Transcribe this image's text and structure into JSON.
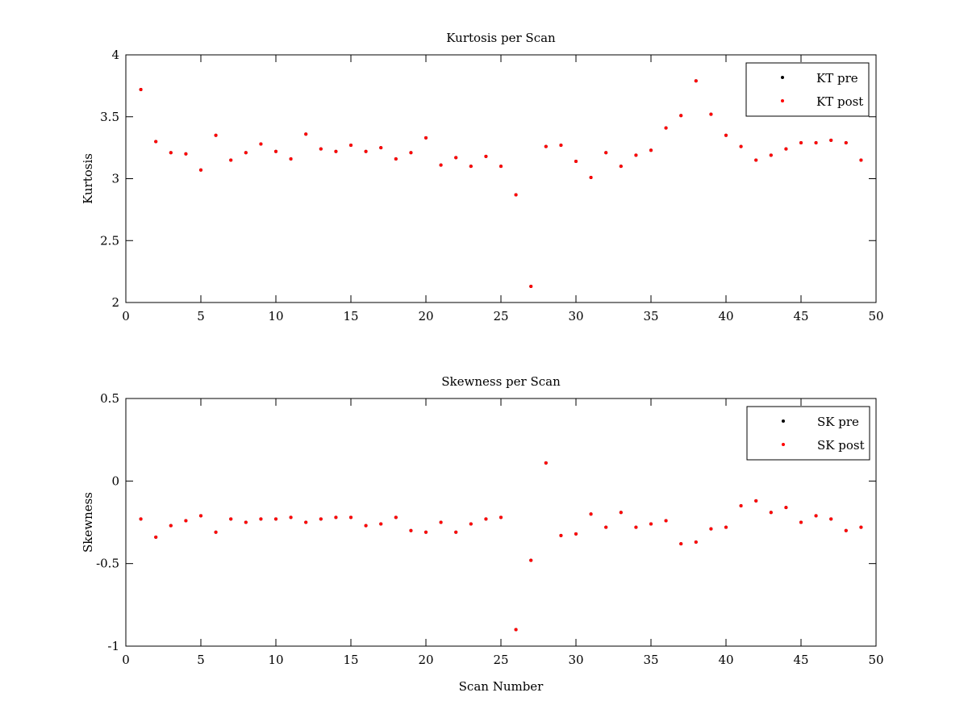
{
  "figure_background": "#ffffff",
  "chart_data": [
    {
      "type": "scatter",
      "title": "Kurtosis per Scan",
      "xlabel": "",
      "ylabel": "Kurtosis",
      "xlim": [
        0,
        50
      ],
      "ylim": [
        2,
        4
      ],
      "xticks": [
        "0",
        "5",
        "10",
        "15",
        "20",
        "25",
        "30",
        "35",
        "40",
        "45",
        "50"
      ],
      "yticks": [
        "2",
        "2.5",
        "3",
        "3.5",
        "4"
      ],
      "grid": false,
      "legend_position": "top-right",
      "x": [
        1,
        2,
        3,
        4,
        5,
        6,
        7,
        8,
        9,
        10,
        11,
        12,
        13,
        14,
        15,
        16,
        17,
        18,
        19,
        20,
        21,
        22,
        23,
        24,
        25,
        26,
        27,
        28,
        29,
        30,
        31,
        32,
        33,
        34,
        35,
        36,
        37,
        38,
        39,
        40,
        41,
        42,
        43,
        44,
        45,
        46,
        47,
        48,
        49
      ],
      "series": [
        {
          "name": "KT pre",
          "color": "#000000",
          "marker": "dot",
          "values": [
            3.72,
            3.3,
            3.21,
            3.2,
            3.07,
            3.35,
            3.15,
            3.21,
            3.28,
            3.22,
            3.16,
            3.36,
            3.24,
            3.22,
            3.27,
            3.22,
            3.25,
            3.16,
            3.21,
            3.33,
            3.11,
            3.17,
            3.1,
            3.18,
            3.1,
            2.87,
            2.13,
            3.26,
            3.27,
            3.14,
            3.01,
            3.21,
            3.1,
            3.19,
            3.23,
            3.41,
            3.51,
            3.79,
            3.52,
            3.35,
            3.26,
            3.15,
            3.19,
            3.24,
            3.29,
            3.29,
            3.31,
            3.29,
            3.15
          ]
        },
        {
          "name": "KT post",
          "color": "#ff0000",
          "marker": "dot",
          "values": [
            3.72,
            3.3,
            3.21,
            3.2,
            3.07,
            3.35,
            3.15,
            3.21,
            3.28,
            3.22,
            3.16,
            3.36,
            3.24,
            3.22,
            3.27,
            3.22,
            3.25,
            3.16,
            3.21,
            3.33,
            3.11,
            3.17,
            3.1,
            3.18,
            3.1,
            2.87,
            2.13,
            3.26,
            3.27,
            3.14,
            3.01,
            3.21,
            3.1,
            3.19,
            3.23,
            3.41,
            3.51,
            3.79,
            3.52,
            3.35,
            3.26,
            3.15,
            3.19,
            3.24,
            3.29,
            3.29,
            3.31,
            3.29,
            3.15
          ]
        }
      ]
    },
    {
      "type": "scatter",
      "title": "Skewness per Scan",
      "xlabel": "Scan Number",
      "ylabel": "Skewness",
      "xlim": [
        0,
        50
      ],
      "ylim": [
        -1,
        0.5
      ],
      "xticks": [
        "0",
        "5",
        "10",
        "15",
        "20",
        "25",
        "30",
        "35",
        "40",
        "45",
        "50"
      ],
      "yticks": [
        "-1",
        "-0.5",
        "0",
        "0.5"
      ],
      "grid": false,
      "legend_position": "top-right",
      "x": [
        1,
        2,
        3,
        4,
        5,
        6,
        7,
        8,
        9,
        10,
        11,
        12,
        13,
        14,
        15,
        16,
        17,
        18,
        19,
        20,
        21,
        22,
        23,
        24,
        25,
        26,
        27,
        28,
        29,
        30,
        31,
        32,
        33,
        34,
        35,
        36,
        37,
        38,
        39,
        40,
        41,
        42,
        43,
        44,
        45,
        46,
        47,
        48,
        49
      ],
      "series": [
        {
          "name": "SK pre",
          "color": "#000000",
          "marker": "dot",
          "values": [
            -0.23,
            -0.34,
            -0.27,
            -0.24,
            -0.21,
            -0.31,
            -0.23,
            -0.25,
            -0.23,
            -0.23,
            -0.22,
            -0.25,
            -0.23,
            -0.22,
            -0.22,
            -0.27,
            -0.26,
            -0.22,
            -0.3,
            -0.31,
            -0.25,
            -0.31,
            -0.26,
            -0.23,
            -0.22,
            -0.9,
            -0.48,
            0.11,
            -0.33,
            -0.32,
            -0.2,
            -0.28,
            -0.19,
            -0.28,
            -0.26,
            -0.24,
            -0.38,
            -0.37,
            -0.29,
            -0.28,
            -0.15,
            -0.12,
            -0.19,
            -0.16,
            -0.25,
            -0.21,
            -0.23,
            -0.3,
            -0.28
          ]
        },
        {
          "name": "SK post",
          "color": "#ff0000",
          "marker": "dot",
          "values": [
            -0.23,
            -0.34,
            -0.27,
            -0.24,
            -0.21,
            -0.31,
            -0.23,
            -0.25,
            -0.23,
            -0.23,
            -0.22,
            -0.25,
            -0.23,
            -0.22,
            -0.22,
            -0.27,
            -0.26,
            -0.22,
            -0.3,
            -0.31,
            -0.25,
            -0.31,
            -0.26,
            -0.23,
            -0.22,
            -0.9,
            -0.48,
            0.11,
            -0.33,
            -0.32,
            -0.2,
            -0.28,
            -0.19,
            -0.28,
            -0.26,
            -0.24,
            -0.38,
            -0.37,
            -0.29,
            -0.28,
            -0.15,
            -0.12,
            -0.19,
            -0.16,
            -0.25,
            -0.21,
            -0.23,
            -0.3,
            -0.28
          ]
        }
      ]
    }
  ]
}
